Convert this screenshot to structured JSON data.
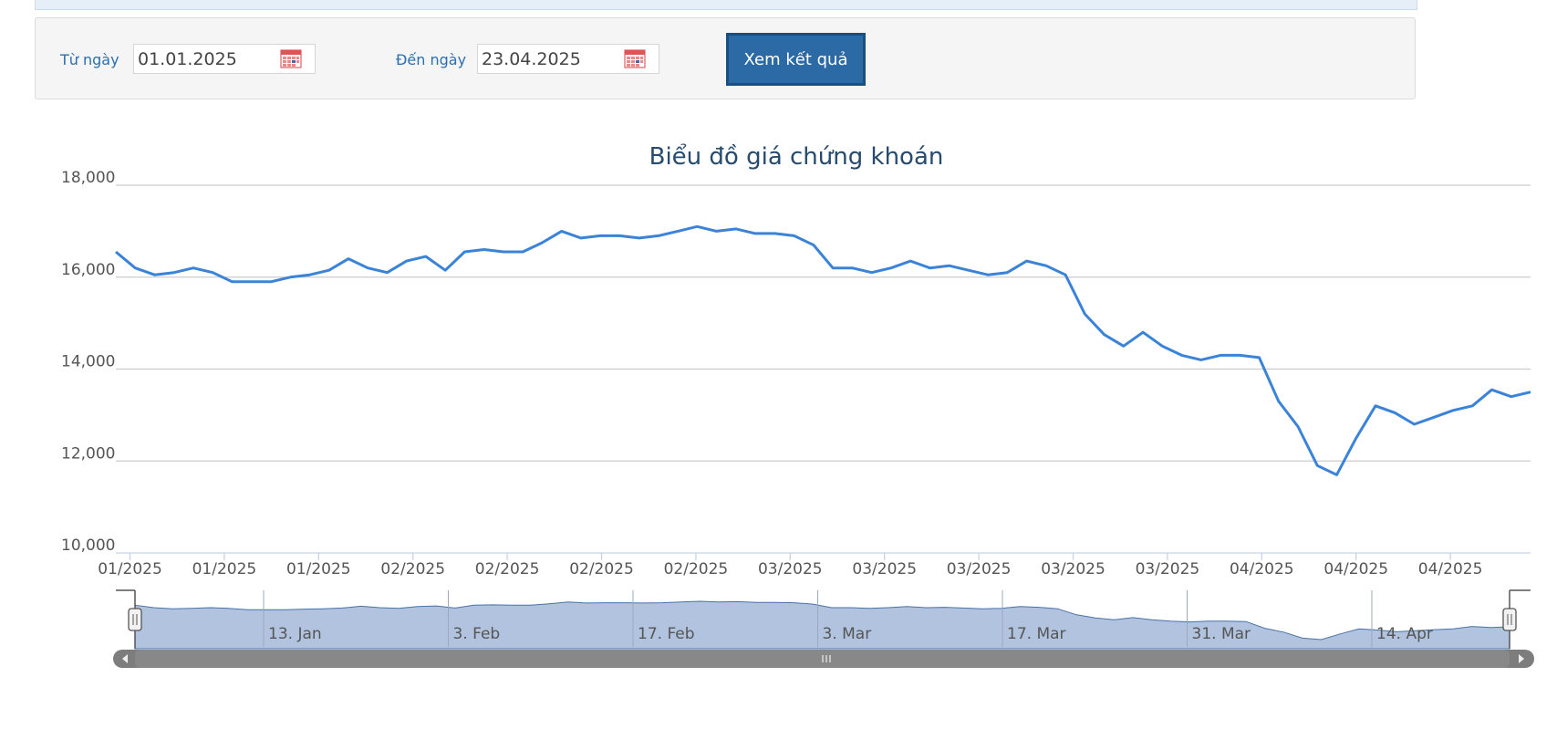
{
  "filter": {
    "from_label": "Từ ngày",
    "from_value": "01.01.2025",
    "to_label": "Đến ngày",
    "to_value": "23.04.2025",
    "submit_label": "Xem kết quả"
  },
  "colors": {
    "line": "#3a83d9",
    "navigator_fill": "#b1c3de",
    "accent": "#2c6aa6"
  },
  "chart_data": {
    "type": "line",
    "title": "Biểu đồ giá chứng khoán",
    "ylim": [
      10000,
      18000
    ],
    "yticks": [
      "10,000",
      "12,000",
      "14,000",
      "16,000",
      "18,000"
    ],
    "ytick_values": [
      10000,
      12000,
      14000,
      16000,
      18000
    ],
    "xtick_labels": [
      "01/2025",
      "01/2025",
      "01/2025",
      "02/2025",
      "02/2025",
      "02/2025",
      "02/2025",
      "03/2025",
      "03/2025",
      "03/2025",
      "03/2025",
      "03/2025",
      "04/2025",
      "04/2025",
      "04/2025"
    ],
    "grid": true,
    "legend": "none",
    "series": [
      {
        "values": [
          16550,
          16200,
          16050,
          16100,
          16200,
          16100,
          15900,
          15900,
          15900,
          16000,
          16050,
          16150,
          16400,
          16200,
          16100,
          16350,
          16450,
          16150,
          16550,
          16600,
          16550,
          16550,
          16750,
          17000,
          16850,
          16900,
          16900,
          16850,
          16900,
          17000,
          17100,
          17000,
          17050,
          16950,
          16950,
          16900,
          16700,
          16200,
          16200,
          16100,
          16200,
          16350,
          16200,
          16250,
          16150,
          16050,
          16100,
          16350,
          16250,
          16050,
          15200,
          14750,
          14500,
          14800,
          14500,
          14300,
          14200,
          14300,
          14300,
          14250,
          13300,
          12750,
          11900,
          11700,
          12500,
          13200,
          13050,
          12800,
          12950,
          13100,
          13200,
          13550,
          13400,
          13500
        ]
      }
    ],
    "navigator": {
      "labels": [
        "13. Jan",
        "3. Feb",
        "17. Feb",
        "3. Mar",
        "17. Mar",
        "31. Mar",
        "14. Apr"
      ]
    }
  }
}
